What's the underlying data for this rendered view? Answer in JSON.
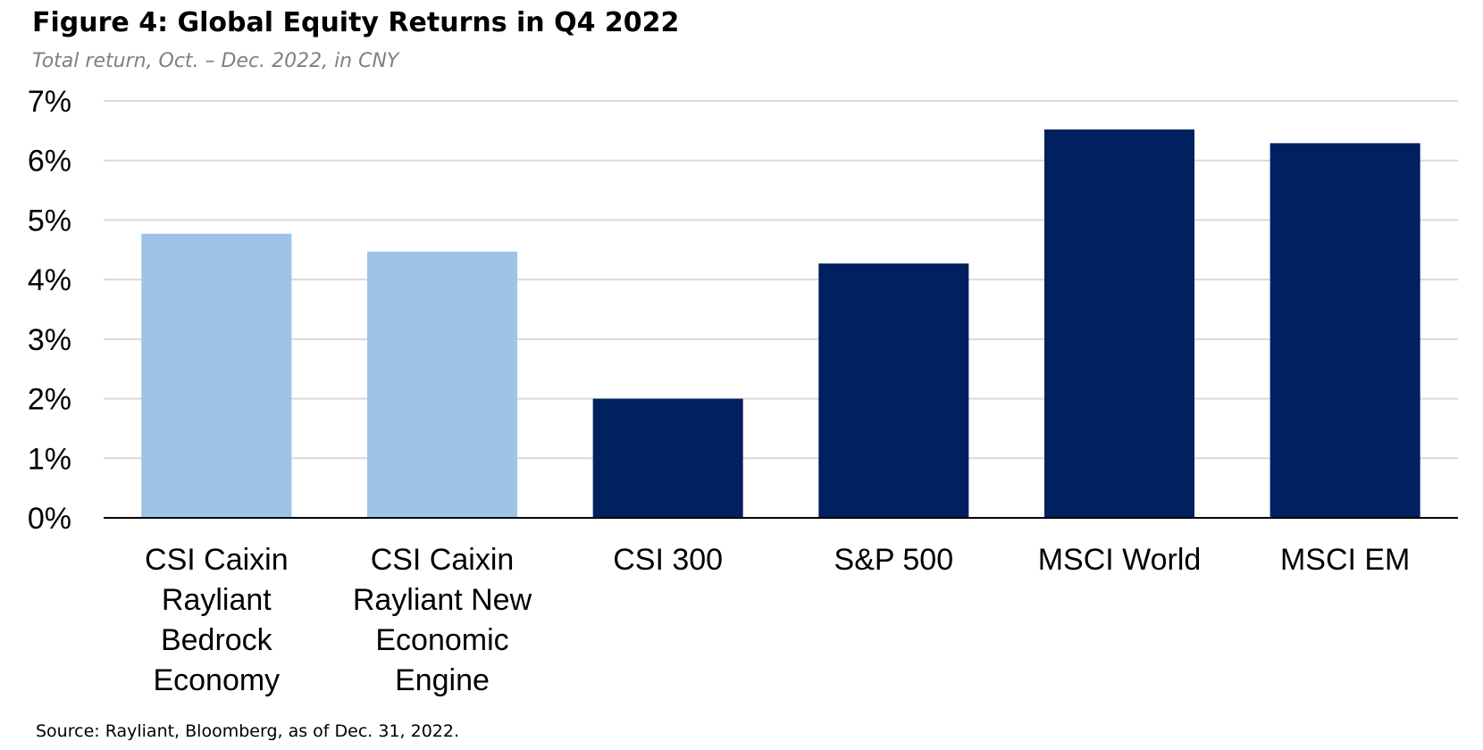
{
  "title": "Figure 4: Global Equity Returns in Q4 2022",
  "subtitle": "Total return, Oct. – Dec. 2022, in CNY",
  "source": "Source: Rayliant, Bloomberg, as of Dec. 31, 2022.",
  "colors": {
    "light_bar": "#9dc3e6",
    "dark_bar": "#002060",
    "grid": "#d9d9d9",
    "axis": "#000000"
  },
  "chart_data": {
    "type": "bar",
    "categories": [
      [
        "CSI Caixin",
        "Rayliant",
        "Bedrock",
        "Economy"
      ],
      [
        "CSI Caixin",
        "Rayliant New",
        "Economic",
        "Engine"
      ],
      [
        "CSI 300"
      ],
      [
        "S&P 500"
      ],
      [
        "MSCI World"
      ],
      [
        "MSCI EM"
      ]
    ],
    "values": [
      4.77,
      4.47,
      2.0,
      4.27,
      6.52,
      6.29
    ],
    "bar_colors": [
      "light",
      "light",
      "dark",
      "dark",
      "dark",
      "dark"
    ],
    "ylim": [
      0,
      7
    ],
    "yticks": [
      "0%",
      "1%",
      "2%",
      "3%",
      "4%",
      "5%",
      "6%",
      "7%"
    ],
    "grid": true,
    "xlabel": "",
    "ylabel": ""
  }
}
